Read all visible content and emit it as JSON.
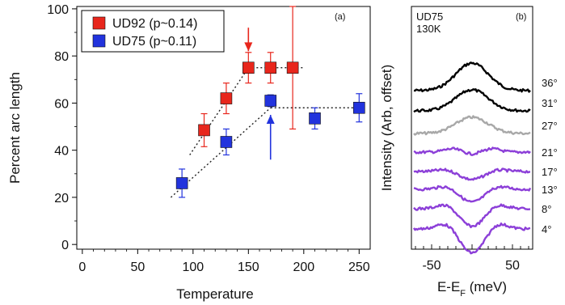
{
  "chart_data": [
    {
      "panel": "(a)",
      "type": "scatter",
      "xlabel": "Temperature",
      "ylabel": "Percent arc length",
      "xlim": [
        -5,
        260
      ],
      "ylim": [
        -2,
        101
      ],
      "xticks": [
        0,
        50,
        100,
        150,
        200,
        250
      ],
      "yticks": [
        0,
        20,
        40,
        60,
        80,
        100
      ],
      "grid": false,
      "legend_position": "top-left",
      "series": [
        {
          "name": "UD92 (p~0.14)",
          "color": "#e8261c",
          "marker": "square",
          "points": [
            {
              "x": 110,
              "y": 48.5,
              "err": 7
            },
            {
              "x": 130,
              "y": 62,
              "err": 6.5
            },
            {
              "x": 150,
              "y": 75,
              "err": 6.5
            },
            {
              "x": 170,
              "y": 75,
              "err": 6.5
            },
            {
              "x": 190,
              "y": 75,
              "err": 26
            }
          ],
          "fit_lines": [
            {
              "x": [
                97,
                150
              ],
              "y": [
                38,
                75
              ]
            },
            {
              "x": [
                150,
                200
              ],
              "y": [
                75,
                75
              ]
            }
          ],
          "arrow": {
            "x": 150,
            "from_y": 92,
            "to_y": 82,
            "direction": "down"
          }
        },
        {
          "name": "UD75 (p~0.11)",
          "color": "#2233dd",
          "marker": "square",
          "points": [
            {
              "x": 90,
              "y": 26,
              "err": 6
            },
            {
              "x": 130,
              "y": 43.5,
              "err": 5.5
            },
            {
              "x": 170,
              "y": 61,
              "err": 2.5
            },
            {
              "x": 210,
              "y": 53.5,
              "err": 4.5
            },
            {
              "x": 250,
              "y": 58,
              "err": 6
            }
          ],
          "fit_lines": [
            {
              "x": [
                80,
                170
              ],
              "y": [
                20,
                58
              ]
            },
            {
              "x": [
                170,
                255
              ],
              "y": [
                58,
                58
              ]
            }
          ],
          "arrow": {
            "x": 170,
            "from_y": 36,
            "to_y": 55,
            "direction": "up"
          }
        }
      ]
    },
    {
      "panel": "(b)",
      "type": "line",
      "title": "UD75",
      "subtitle": "130K",
      "xlabel": "E-E",
      "xlabel_subscript": "F",
      "xlabel_unit": " (meV)",
      "ylabel": "Intensity (Arb, offset)",
      "xlim": [
        -75,
        75
      ],
      "xticks": [
        -50,
        50
      ],
      "series": [
        {
          "name": "36°",
          "color": "#000000",
          "shape": "peak",
          "amp": 34,
          "offset": 112
        },
        {
          "name": "31°",
          "color": "#000000",
          "shape": "peak",
          "amp": 26,
          "offset": 137
        },
        {
          "name": "27°",
          "color": "#a8a8a8",
          "shape": "peak",
          "amp": 20,
          "offset": 165
        },
        {
          "name": "21°",
          "color": "#8c3fd8",
          "shape": "flat",
          "amp": 4,
          "offset": 188
        },
        {
          "name": "17°",
          "color": "#8c3fd8",
          "shape": "dip",
          "amp": 10,
          "offset": 212
        },
        {
          "name": "13°",
          "color": "#8c3fd8",
          "shape": "dip",
          "amp": 16,
          "offset": 234
        },
        {
          "name": "8°",
          "color": "#8c3fd8",
          "shape": "dip",
          "amp": 22,
          "offset": 258
        },
        {
          "name": "4°",
          "color": "#8c3fd8",
          "shape": "dip",
          "amp": 30,
          "offset": 283
        }
      ]
    }
  ]
}
